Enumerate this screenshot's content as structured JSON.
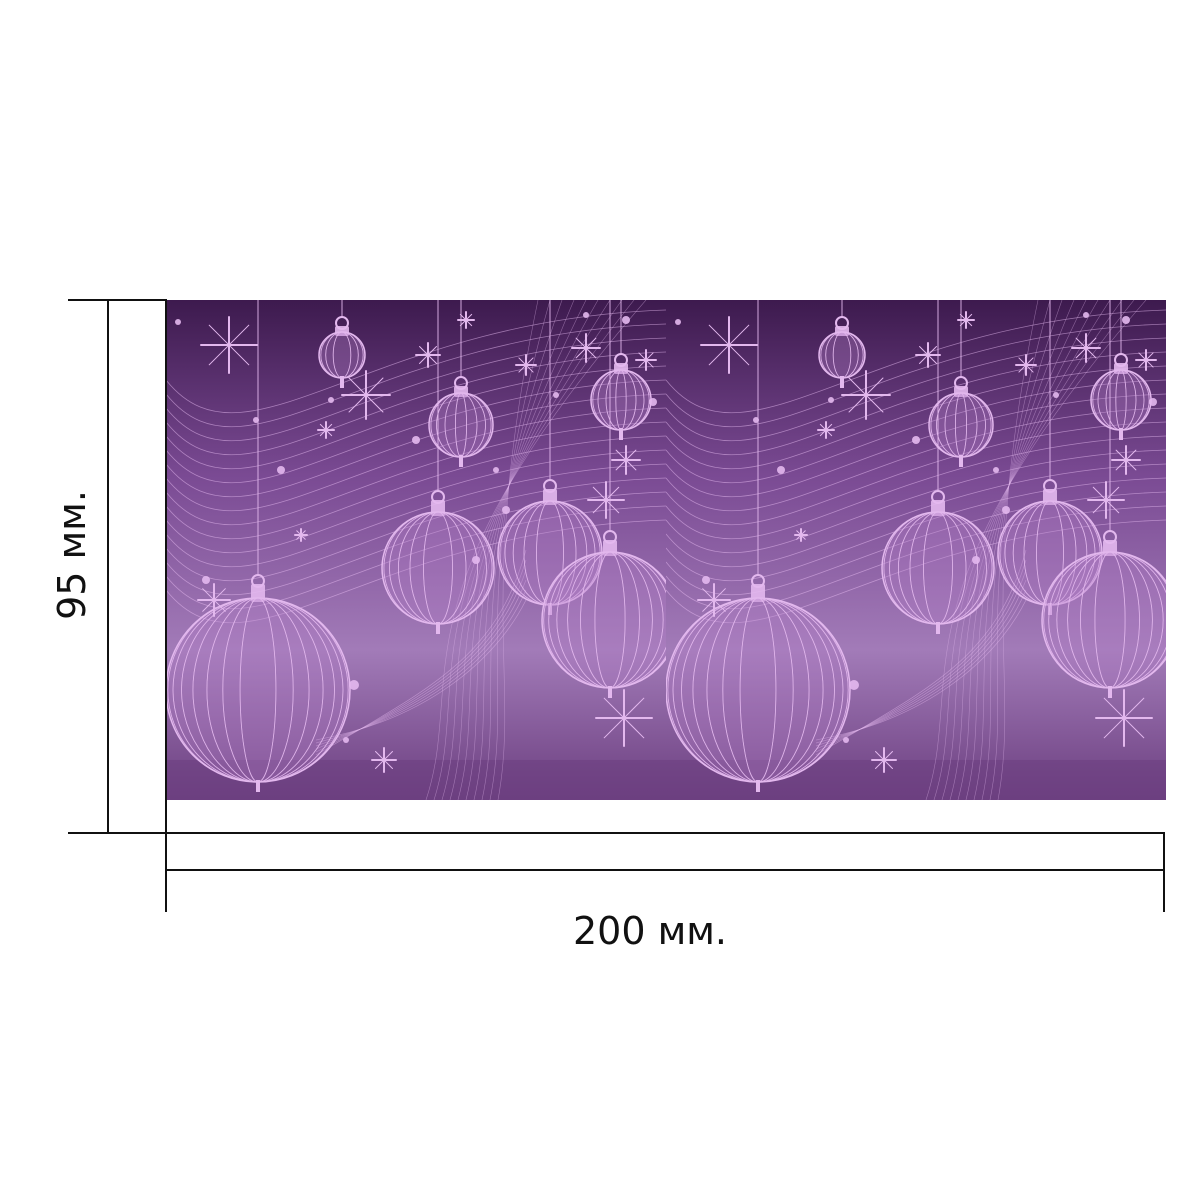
{
  "dimensions": {
    "height_label": "95 мм.",
    "width_label": "200 мм."
  },
  "artwork": {
    "theme": "christmas-ornaments",
    "background_colors": [
      "#3d1a4e",
      "#7a4a93",
      "#a27bb8",
      "#6c3f80"
    ],
    "ornament_color": "#e3b8ee",
    "repeat_count": 2
  }
}
